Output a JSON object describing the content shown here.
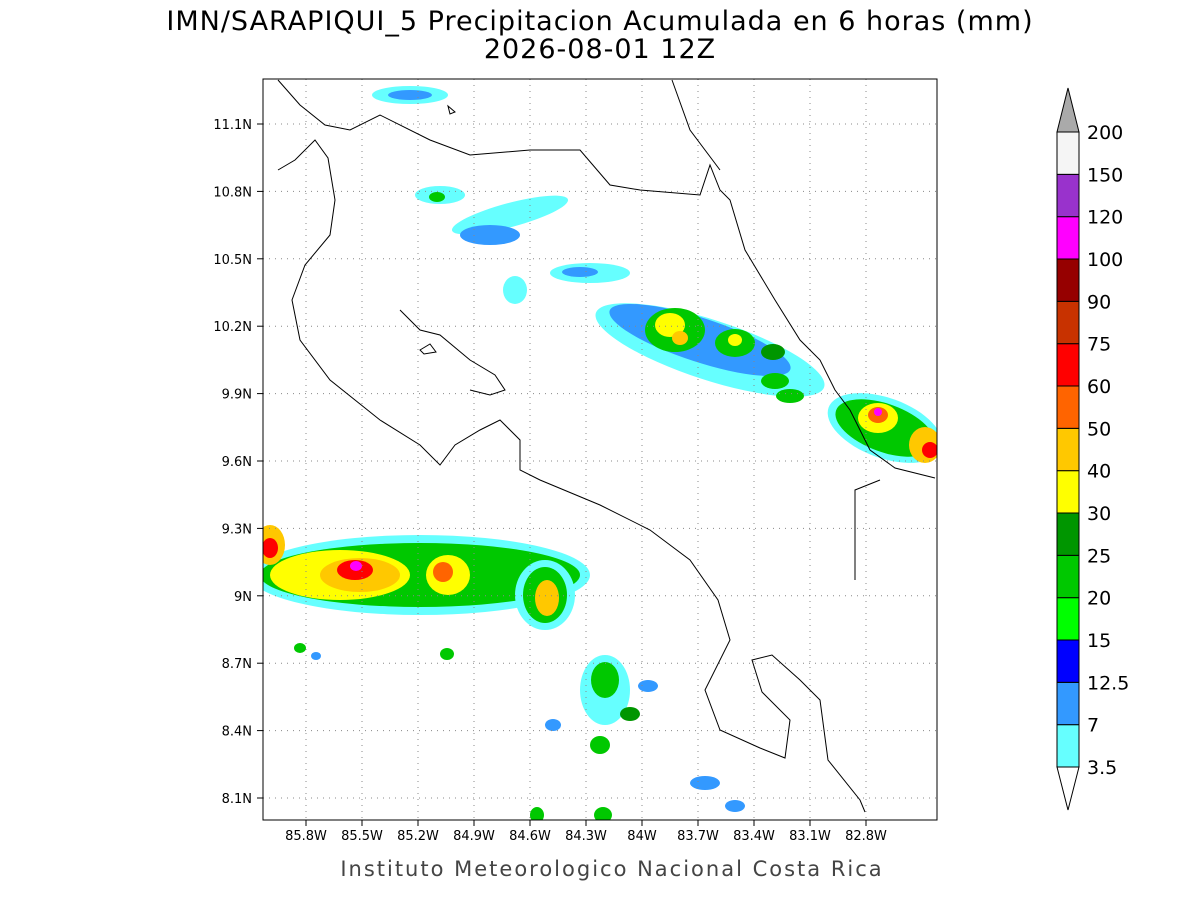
{
  "title": "IMN/SARAPIQUI_5 Precipitacion Acumulada en 6 horas (mm)",
  "subtitle": "2026-08-01 12Z",
  "map": {
    "lat_labels": [
      "11.1N",
      "10.8N",
      "10.5N",
      "10.2N",
      "9.9N",
      "9.6N",
      "9.3N",
      "9N",
      "8.7N",
      "8.4N",
      "8.1N"
    ],
    "lon_labels": [
      "85.8W",
      "85.5W",
      "85.2W",
      "84.9W",
      "84.6W",
      "84.3W",
      "84W",
      "83.7W",
      "83.4W",
      "83.1W",
      "82.8W"
    ]
  },
  "colorbar": {
    "levels": [
      3.5,
      7,
      12.5,
      15,
      20,
      25,
      30,
      40,
      50,
      60,
      75,
      90,
      100,
      120,
      150,
      200
    ],
    "colors": [
      "#66ffff",
      "#3399ff",
      "#0000ff",
      "#00ff00",
      "#00c800",
      "#009600",
      "#ffff00",
      "#ffc800",
      "#ff6400",
      "#ff0000",
      "#c83200",
      "#960000",
      "#ff00ff",
      "#9932cc",
      "#f5f5f5"
    ],
    "under_color": "#ffffff",
    "over_color": "#aaaaaa"
  },
  "footer": "Instituto Meteorologico Nacional Costa Rica"
}
